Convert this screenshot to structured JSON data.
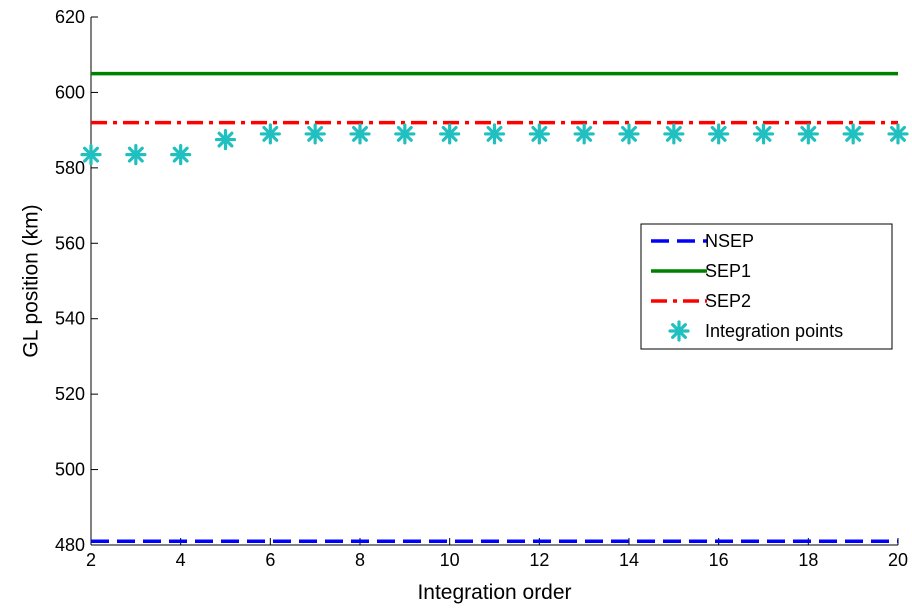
{
  "chart_data": {
    "type": "line",
    "xlabel": "Integration order",
    "ylabel": "GL position (km)",
    "xlim": [
      2,
      20
    ],
    "ylim": [
      480,
      620
    ],
    "xticks": [
      2,
      4,
      6,
      8,
      10,
      12,
      14,
      16,
      18,
      20
    ],
    "yticks": [
      480,
      500,
      520,
      540,
      560,
      580,
      600,
      620
    ],
    "grid": false,
    "legend_position": "right",
    "series": [
      {
        "name": "NSEP",
        "style": "dashed",
        "color": "#0000ff",
        "x": [
          2,
          20
        ],
        "y": [
          481,
          481
        ]
      },
      {
        "name": "SEP1",
        "style": "solid",
        "color": "#008000",
        "x": [
          2,
          20
        ],
        "y": [
          605,
          605
        ]
      },
      {
        "name": "SEP2",
        "style": "dashdot",
        "color": "#ff0000",
        "x": [
          2,
          20
        ],
        "y": [
          592,
          592
        ]
      },
      {
        "name": "Integration points",
        "style": "marker-asterisk",
        "color": "#20c0c0",
        "x": [
          2,
          3,
          4,
          5,
          6,
          7,
          8,
          9,
          10,
          11,
          12,
          13,
          14,
          15,
          16,
          17,
          18,
          19,
          20
        ],
        "y": [
          583.5,
          583.5,
          583.5,
          587.5,
          589,
          589,
          589,
          589,
          589,
          589,
          589,
          589,
          589,
          589,
          589,
          589,
          589,
          589,
          589
        ]
      }
    ]
  }
}
